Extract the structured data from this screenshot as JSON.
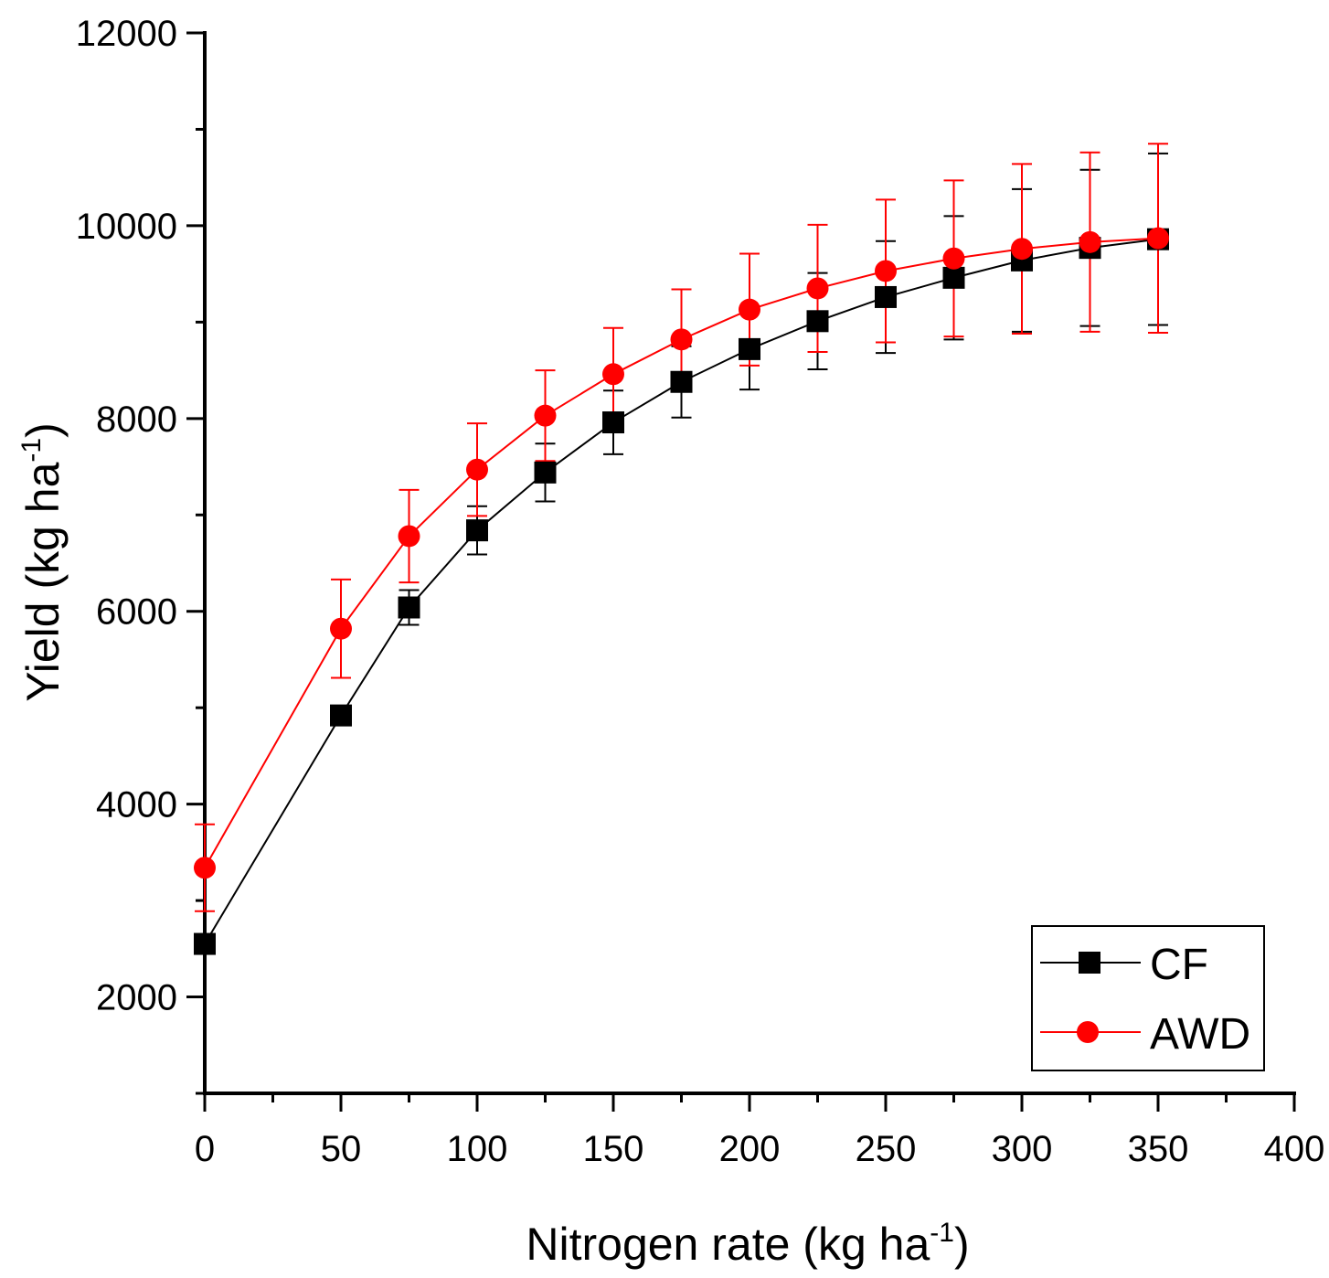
{
  "chart_data": {
    "type": "line",
    "title": "",
    "xlabel": {
      "main": "Nitrogen rate (kg ha",
      "sup": "-1",
      "end": ")"
    },
    "ylabel": {
      "main": "Yield (kg ha",
      "sup": "-1",
      "end": ")"
    },
    "xlim": [
      0,
      400
    ],
    "ylim": [
      1000,
      12000
    ],
    "x_ticks": [
      0,
      50,
      100,
      150,
      200,
      250,
      300,
      350,
      400
    ],
    "x_tick_labels": [
      "0",
      "50",
      "100",
      "150",
      "200",
      "250",
      "300",
      "350",
      "400"
    ],
    "x_minor_ticks": [
      25,
      75,
      125,
      175,
      225,
      275,
      325,
      375
    ],
    "y_ticks": [
      2000,
      4000,
      6000,
      8000,
      10000,
      12000
    ],
    "y_tick_labels": [
      "2000",
      "4000",
      "6000",
      "8000",
      "10000",
      "12000"
    ],
    "y_minor_ticks": [
      1000,
      3000,
      5000,
      7000,
      9000,
      11000
    ],
    "grid": false,
    "legend_position": "bottom-right",
    "x": [
      0,
      50,
      75,
      100,
      125,
      150,
      175,
      200,
      225,
      250,
      275,
      300,
      325,
      350
    ],
    "series": [
      {
        "name": "CF",
        "color": "#000000",
        "marker": "square",
        "values": [
          2550,
          4920,
          6040,
          6840,
          7440,
          7960,
          8380,
          8720,
          9010,
          9260,
          9460,
          9640,
          9770,
          9860
        ],
        "errors": [
          0,
          0,
          180,
          250,
          300,
          330,
          370,
          420,
          500,
          580,
          640,
          740,
          810,
          890
        ]
      },
      {
        "name": "AWD",
        "color": "#ff0000",
        "marker": "circle",
        "values": [
          3340,
          5820,
          6780,
          7470,
          8030,
          8460,
          8820,
          9130,
          9350,
          9530,
          9660,
          9760,
          9830,
          9870
        ],
        "errors": [
          450,
          510,
          480,
          480,
          470,
          480,
          520,
          580,
          660,
          740,
          810,
          880,
          930,
          980
        ]
      }
    ]
  }
}
